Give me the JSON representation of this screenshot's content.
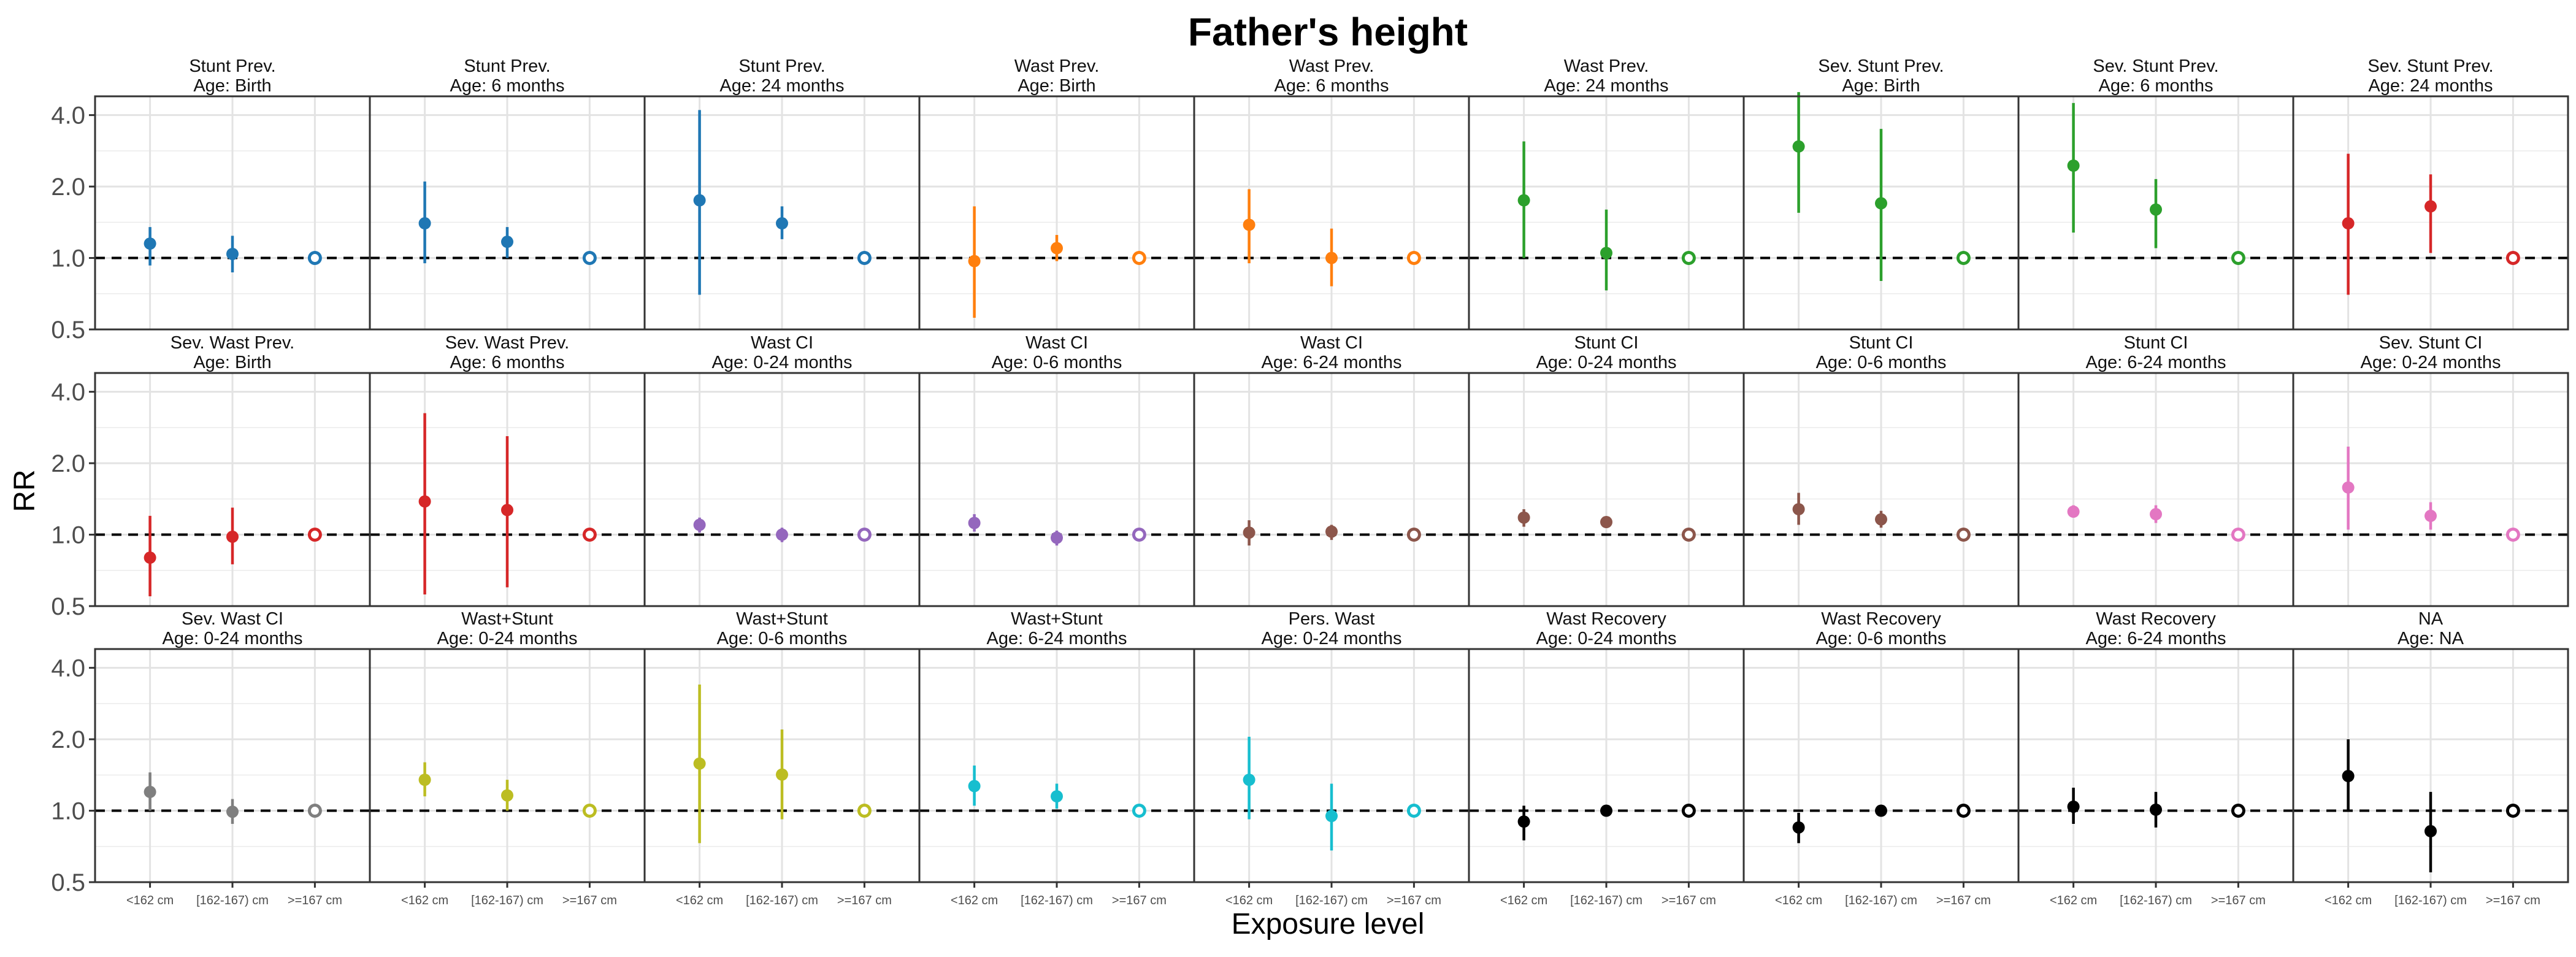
{
  "chart_data": {
    "type": "scatter",
    "title": "Father's height",
    "xlabel": "Exposure level",
    "ylabel": "RR",
    "y_scale": "log",
    "ylim": [
      0.5,
      4.8
    ],
    "yticks": [
      "0.5",
      "1.0",
      "2.0",
      "4.0"
    ],
    "ytick_values": [
      0.5,
      1.0,
      2.0,
      4.0
    ],
    "reference_line": 1.0,
    "categories": [
      "<162 cm",
      "[162-167) cm",
      ">=167 cm"
    ],
    "grid": true,
    "facet_layout": {
      "rows": 3,
      "cols": 9
    },
    "panels": [
      {
        "line1": "Stunt Prev.",
        "line2": "Age: Birth",
        "color": "#1f77b4",
        "points": [
          {
            "est": 1.15,
            "lo": 0.93,
            "hi": 1.35
          },
          {
            "est": 1.04,
            "lo": 0.87,
            "hi": 1.24
          },
          {
            "est": 1.0,
            "ref": true
          }
        ]
      },
      {
        "line1": "Stunt Prev.",
        "line2": "Age: 6 months",
        "color": "#1f77b4",
        "points": [
          {
            "est": 1.4,
            "lo": 0.95,
            "hi": 2.1
          },
          {
            "est": 1.17,
            "lo": 1.0,
            "hi": 1.35
          },
          {
            "est": 1.0,
            "ref": true
          }
        ]
      },
      {
        "line1": "Stunt Prev.",
        "line2": "Age: 24 months",
        "color": "#1f77b4",
        "points": [
          {
            "est": 1.75,
            "lo": 0.7,
            "hi": 4.2
          },
          {
            "est": 1.4,
            "lo": 1.2,
            "hi": 1.65
          },
          {
            "est": 1.0,
            "ref": true
          }
        ]
      },
      {
        "line1": "Wast Prev.",
        "line2": "Age: Birth",
        "color": "#ff7f0e",
        "points": [
          {
            "est": 0.97,
            "lo": 0.56,
            "hi": 1.65
          },
          {
            "est": 1.1,
            "lo": 0.97,
            "hi": 1.25
          },
          {
            "est": 1.0,
            "ref": true
          }
        ]
      },
      {
        "line1": "Wast Prev.",
        "line2": "Age: 6 months",
        "color": "#ff7f0e",
        "points": [
          {
            "est": 1.38,
            "lo": 0.95,
            "hi": 1.95
          },
          {
            "est": 1.0,
            "lo": 0.76,
            "hi": 1.33
          },
          {
            "est": 1.0,
            "ref": true
          }
        ]
      },
      {
        "line1": "Wast Prev.",
        "line2": "Age: 24 months",
        "color": "#2ca02c",
        "points": [
          {
            "est": 1.75,
            "lo": 1.0,
            "hi": 3.1
          },
          {
            "est": 1.05,
            "lo": 0.73,
            "hi": 1.6
          },
          {
            "est": 1.0,
            "ref": true
          }
        ]
      },
      {
        "line1": "Sev. Stunt Prev.",
        "line2": "Age: Birth",
        "color": "#2ca02c",
        "points": [
          {
            "est": 2.95,
            "lo": 1.55,
            "hi": 5.0
          },
          {
            "est": 1.7,
            "lo": 0.8,
            "hi": 3.5
          },
          {
            "est": 1.0,
            "ref": true
          }
        ]
      },
      {
        "line1": "Sev. Stunt Prev.",
        "line2": "Age: 6 months",
        "color": "#2ca02c",
        "points": [
          {
            "est": 2.45,
            "lo": 1.28,
            "hi": 4.5
          },
          {
            "est": 1.6,
            "lo": 1.1,
            "hi": 2.15
          },
          {
            "est": 1.0,
            "ref": true
          }
        ]
      },
      {
        "line1": "Sev. Stunt Prev.",
        "line2": "Age: 24 months",
        "color": "#d62728",
        "points": [
          {
            "est": 1.4,
            "lo": 0.7,
            "hi": 2.75
          },
          {
            "est": 1.65,
            "lo": 1.05,
            "hi": 2.25
          },
          {
            "est": 1.0,
            "ref": true
          }
        ]
      },
      {
        "line1": "Sev. Wast Prev.",
        "line2": "Age: Birth",
        "color": "#d62728",
        "points": [
          {
            "est": 0.8,
            "lo": 0.55,
            "hi": 1.2
          },
          {
            "est": 0.98,
            "lo": 0.75,
            "hi": 1.3
          },
          {
            "est": 1.0,
            "ref": true
          }
        ]
      },
      {
        "line1": "Sev. Wast Prev.",
        "line2": "Age: 6 months",
        "color": "#d62728",
        "points": [
          {
            "est": 1.38,
            "lo": 0.56,
            "hi": 3.25
          },
          {
            "est": 1.27,
            "lo": 0.6,
            "hi": 2.6
          },
          {
            "est": 1.0,
            "ref": true
          }
        ]
      },
      {
        "line1": "Wast CI",
        "line2": "Age: 0-24 months",
        "color": "#9467bd",
        "points": [
          {
            "est": 1.1,
            "lo": 1.02,
            "hi": 1.18
          },
          {
            "est": 1.0,
            "lo": 0.93,
            "hi": 1.07
          },
          {
            "est": 1.0,
            "ref": true
          }
        ]
      },
      {
        "line1": "Wast CI",
        "line2": "Age: 0-6 months",
        "color": "#9467bd",
        "points": [
          {
            "est": 1.12,
            "lo": 1.03,
            "hi": 1.22
          },
          {
            "est": 0.97,
            "lo": 0.9,
            "hi": 1.04
          },
          {
            "est": 1.0,
            "ref": true
          }
        ]
      },
      {
        "line1": "Wast CI",
        "line2": "Age: 6-24 months",
        "color": "#8c564b",
        "points": [
          {
            "est": 1.02,
            "lo": 0.9,
            "hi": 1.15
          },
          {
            "est": 1.03,
            "lo": 0.95,
            "hi": 1.1
          },
          {
            "est": 1.0,
            "ref": true
          }
        ]
      },
      {
        "line1": "Stunt CI",
        "line2": "Age: 0-24 months",
        "color": "#8c564b",
        "points": [
          {
            "est": 1.18,
            "lo": 1.08,
            "hi": 1.28
          },
          {
            "est": 1.13,
            "lo": 1.07,
            "hi": 1.19
          },
          {
            "est": 1.0,
            "ref": true
          }
        ]
      },
      {
        "line1": "Stunt CI",
        "line2": "Age: 0-6 months",
        "color": "#8c564b",
        "points": [
          {
            "est": 1.28,
            "lo": 1.1,
            "hi": 1.5
          },
          {
            "est": 1.16,
            "lo": 1.07,
            "hi": 1.26
          },
          {
            "est": 1.0,
            "ref": true
          }
        ]
      },
      {
        "line1": "Stunt CI",
        "line2": "Age: 6-24 months",
        "color": "#e377c2",
        "points": [
          {
            "est": 1.25,
            "lo": 1.18,
            "hi": 1.33
          },
          {
            "est": 1.22,
            "lo": 1.12,
            "hi": 1.33
          },
          {
            "est": 1.0,
            "ref": true
          }
        ]
      },
      {
        "line1": "Sev. Stunt CI",
        "line2": "Age: 0-24 months",
        "color": "#e377c2",
        "points": [
          {
            "est": 1.58,
            "lo": 1.05,
            "hi": 2.35
          },
          {
            "est": 1.2,
            "lo": 1.05,
            "hi": 1.37
          },
          {
            "est": 1.0,
            "ref": true
          }
        ]
      },
      {
        "line1": "Sev. Wast CI",
        "line2": "Age: 0-24 months",
        "color": "#7f7f7f",
        "points": [
          {
            "est": 1.2,
            "lo": 1.0,
            "hi": 1.45
          },
          {
            "est": 0.99,
            "lo": 0.88,
            "hi": 1.12
          },
          {
            "est": 1.0,
            "ref": true
          }
        ]
      },
      {
        "line1": "Wast+Stunt",
        "line2": "Age: 0-24 months",
        "color": "#bcbd22",
        "points": [
          {
            "est": 1.35,
            "lo": 1.15,
            "hi": 1.6
          },
          {
            "est": 1.16,
            "lo": 1.0,
            "hi": 1.35
          },
          {
            "est": 1.0,
            "ref": true
          }
        ]
      },
      {
        "line1": "Wast+Stunt",
        "line2": "Age: 0-6 months",
        "color": "#bcbd22",
        "points": [
          {
            "est": 1.58,
            "lo": 0.73,
            "hi": 3.4
          },
          {
            "est": 1.42,
            "lo": 0.92,
            "hi": 2.2
          },
          {
            "est": 1.0,
            "ref": true
          }
        ]
      },
      {
        "line1": "Wast+Stunt",
        "line2": "Age: 6-24 months",
        "color": "#17becf",
        "points": [
          {
            "est": 1.27,
            "lo": 1.05,
            "hi": 1.55
          },
          {
            "est": 1.15,
            "lo": 1.02,
            "hi": 1.3
          },
          {
            "est": 1.0,
            "ref": true
          }
        ]
      },
      {
        "line1": "Pers. Wast",
        "line2": "Age: 0-24 months",
        "color": "#17becf",
        "points": [
          {
            "est": 1.35,
            "lo": 0.92,
            "hi": 2.05
          },
          {
            "est": 0.95,
            "lo": 0.68,
            "hi": 1.3
          },
          {
            "est": 1.0,
            "ref": true
          }
        ]
      },
      {
        "line1": "Wast Recovery",
        "line2": "Age: 0-24 months",
        "color": "#000000",
        "points": [
          {
            "est": 0.9,
            "lo": 0.75,
            "hi": 1.05
          },
          {
            "est": 1.0,
            "lo": 0.98,
            "hi": 1.02
          },
          {
            "est": 1.0,
            "ref": true
          }
        ]
      },
      {
        "line1": "Wast Recovery",
        "line2": "Age: 0-6 months",
        "color": "#000000",
        "points": [
          {
            "est": 0.85,
            "lo": 0.73,
            "hi": 0.98
          },
          {
            "est": 1.0,
            "lo": 0.98,
            "hi": 1.02
          },
          {
            "est": 1.0,
            "ref": true
          }
        ]
      },
      {
        "line1": "Wast Recovery",
        "line2": "Age: 6-24 months",
        "color": "#000000",
        "points": [
          {
            "est": 1.04,
            "lo": 0.88,
            "hi": 1.25
          },
          {
            "est": 1.01,
            "lo": 0.85,
            "hi": 1.2
          },
          {
            "est": 1.0,
            "ref": true
          }
        ]
      },
      {
        "line1": "NA",
        "line2": "Age: NA",
        "color": "#000000",
        "points": [
          {
            "est": 1.4,
            "lo": 1.0,
            "hi": 2.0
          },
          {
            "est": 0.82,
            "lo": 0.55,
            "hi": 1.2
          },
          {
            "est": 1.0,
            "ref": true
          }
        ]
      }
    ]
  }
}
